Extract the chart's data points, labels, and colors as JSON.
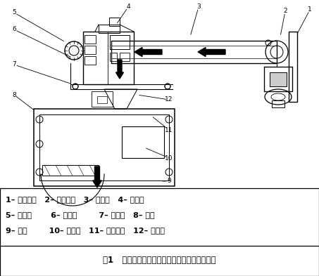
{
  "title": "图1   数字式、智能型定量包装秤机械结构示意图",
  "legend_line1": "1– 传动部分   2– 给料装置   3– 电磁阀   4– 给料口",
  "legend_line2": "5– 双螺旋       6– 截料门        7– 三联件   8– 秤斗",
  "legend_line3": "9– 秤体        10– 钉丝绳   11– 限位螺栓   12– 传感器",
  "bg_color": "#ffffff",
  "text_color": "#000000",
  "fig_width": 4.53,
  "fig_height": 3.93,
  "dpi": 100
}
